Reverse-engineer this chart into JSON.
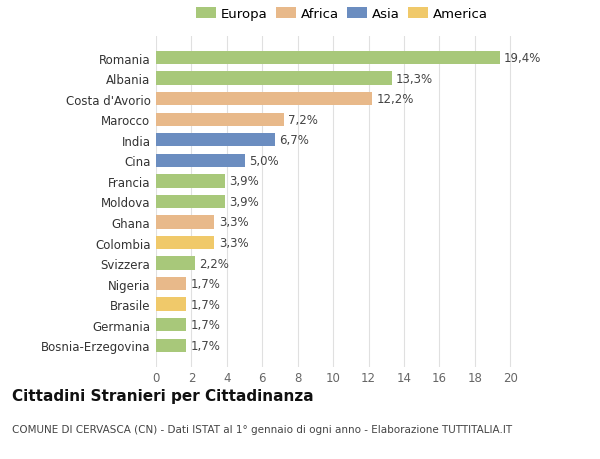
{
  "countries": [
    "Bosnia-Erzegovina",
    "Germania",
    "Brasile",
    "Nigeria",
    "Svizzera",
    "Colombia",
    "Ghana",
    "Moldova",
    "Francia",
    "Cina",
    "India",
    "Marocco",
    "Costa d'Avorio",
    "Albania",
    "Romania"
  ],
  "values": [
    1.7,
    1.7,
    1.7,
    1.7,
    2.2,
    3.3,
    3.3,
    3.9,
    3.9,
    5.0,
    6.7,
    7.2,
    12.2,
    13.3,
    19.4
  ],
  "labels": [
    "1,7%",
    "1,7%",
    "1,7%",
    "1,7%",
    "2,2%",
    "3,3%",
    "3,3%",
    "3,9%",
    "3,9%",
    "5,0%",
    "6,7%",
    "7,2%",
    "12,2%",
    "13,3%",
    "19,4%"
  ],
  "continents": [
    "Europa",
    "Europa",
    "America",
    "Africa",
    "Europa",
    "America",
    "Africa",
    "Europa",
    "Europa",
    "Asia",
    "Asia",
    "Africa",
    "Africa",
    "Europa",
    "Europa"
  ],
  "colors": {
    "Europa": "#a8c87a",
    "Africa": "#e8b98a",
    "Asia": "#6b8dc0",
    "America": "#f0c96a"
  },
  "legend_order": [
    "Europa",
    "Africa",
    "Asia",
    "America"
  ],
  "title": "Cittadini Stranieri per Cittadinanza",
  "subtitle": "COMUNE DI CERVASCA (CN) - Dati ISTAT al 1° gennaio di ogni anno - Elaborazione TUTTITALIA.IT",
  "xlim": [
    0,
    21
  ],
  "xticks": [
    0,
    2,
    4,
    6,
    8,
    10,
    12,
    14,
    16,
    18,
    20
  ],
  "background_color": "#ffffff",
  "grid_color": "#e0e0e0",
  "bar_height": 0.65,
  "label_fontsize": 8.5,
  "tick_fontsize": 8.5,
  "title_fontsize": 11,
  "subtitle_fontsize": 7.5
}
